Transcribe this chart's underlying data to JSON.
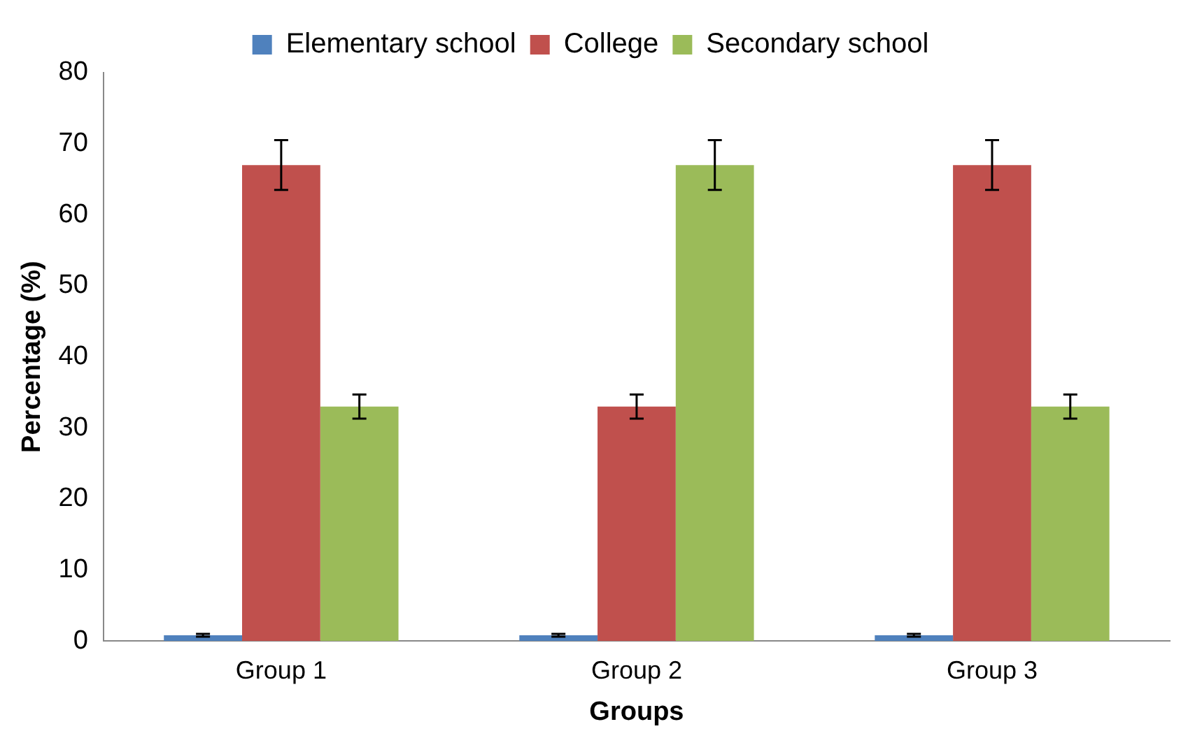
{
  "chart_data": {
    "type": "bar",
    "xlabel": "Groups",
    "ylabel": "Percentage (%)",
    "categories": [
      "Group 1",
      "Group 2",
      "Group 3"
    ],
    "series": [
      {
        "name": "Elementary school",
        "color": "#4f81bd",
        "values": [
          0.8,
          0.8,
          0.8
        ],
        "errors": [
          0.2,
          0.2,
          0.2
        ]
      },
      {
        "name": "College",
        "color": "#c0504d",
        "values": [
          67,
          33,
          67
        ],
        "errors": [
          3.5,
          1.7,
          3.5
        ]
      },
      {
        "name": "Secondary school",
        "color": "#9bbb59",
        "values": [
          33,
          67,
          33
        ],
        "errors": [
          1.7,
          3.5,
          1.7
        ]
      }
    ],
    "ylim": [
      0,
      80
    ],
    "yticks": [
      0,
      10,
      20,
      30,
      40,
      50,
      60,
      70,
      80
    ],
    "grid": false,
    "legend": "top"
  }
}
